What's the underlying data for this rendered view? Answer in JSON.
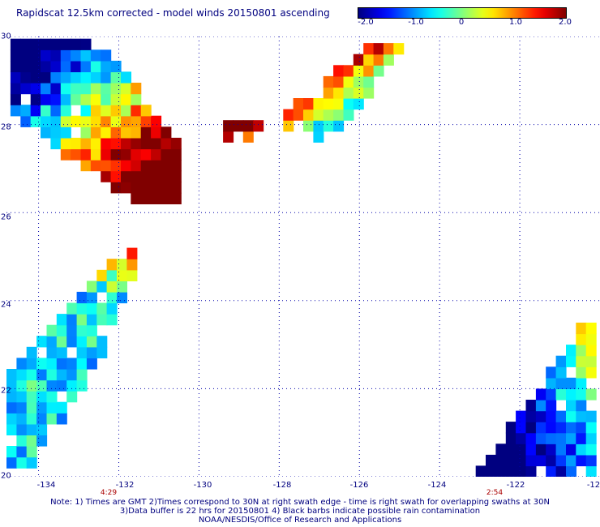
{
  "title": "Rapidscat 12.5km corrected - model winds 20150801 ascending",
  "colorbar": {
    "min": -2.0,
    "max": 2.0,
    "tick_labels": [
      "-2.0",
      "-1.0",
      "0",
      "1.0",
      "2.0"
    ],
    "tick_values": [
      -2.0,
      -1.0,
      0.0,
      1.0,
      2.0
    ],
    "colormap": "jet",
    "low_color": "#00007f",
    "high_color": "#7f0000"
  },
  "map": {
    "lat_labels": [
      "30",
      "28",
      "26",
      "24",
      "22",
      "20"
    ],
    "lon_labels": [
      "-134",
      "-132",
      "-130",
      "-128",
      "-126",
      "-124",
      "-122",
      "-12"
    ],
    "lat_range": [
      20,
      30
    ],
    "lon_range": [
      -134.8,
      -120
    ],
    "gridlines": "dotted",
    "swath_times": [
      {
        "label": "4:29",
        "lon": -132.0
      },
      {
        "label": "2:54",
        "lon": -121.9
      }
    ],
    "cell_size_deg": 0.125,
    "swaths": [
      {
        "name": "swath-northwest",
        "lat_range": [
          26.2,
          29.9
        ],
        "lon_range": [
          -134.7,
          -130.4
        ]
      },
      {
        "name": "swath-central",
        "lat_range": [
          27.6,
          29.9
        ],
        "lon_range": [
          -129.4,
          -124.9
        ]
      },
      {
        "name": "swath-southwest",
        "lat_range": [
          20.2,
          25.2
        ],
        "lon_range": [
          -134.8,
          -131.4
        ]
      },
      {
        "name": "swath-southeast",
        "lat_range": [
          20.0,
          23.6
        ],
        "lon_range": [
          -123.1,
          -120.0
        ]
      }
    ]
  },
  "notes": {
    "line1": "Note: 1) Times are GMT 2)Times correspond to 30N at right swath edge - time is right swath for overlapping swaths at 30N",
    "line2": "3)Data buffer is 22 hrs for 20150801 4) Black barbs indicate possible rain contamination",
    "line3": "NOAA/NESDIS/Office of Research and Applications"
  }
}
